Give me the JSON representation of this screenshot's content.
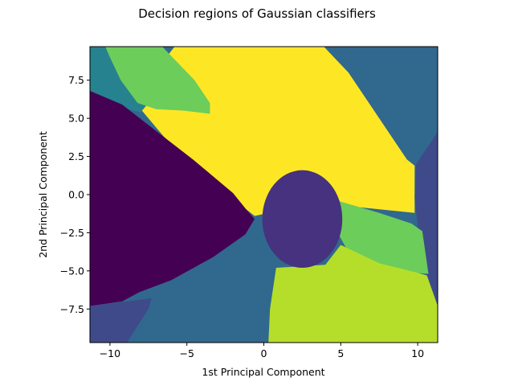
{
  "figure": {
    "title": "Decision regions of Gaussian classifiers"
  },
  "chart_data": {
    "type": "heatmap",
    "title": "Decision regions of Gaussian classifiers",
    "xlabel": "1st Principal Component",
    "ylabel": "2nd Principal Component",
    "xlim": [
      -11.3,
      11.3
    ],
    "ylim": [
      -9.7,
      9.7
    ],
    "x_ticks": [
      -10,
      -5,
      0,
      5,
      10
    ],
    "x_tick_labels": [
      "−10",
      "−5",
      "0",
      "5",
      "10"
    ],
    "y_ticks": [
      7.5,
      5.0,
      2.5,
      0.0,
      -2.5,
      -5.0,
      -7.5
    ],
    "y_tick_labels": [
      "7.5",
      "5.0",
      "2.5",
      "0.0",
      "−2.5",
      "−5.0",
      "−7.5"
    ],
    "grid": false,
    "legend": false,
    "colormap": "viridis",
    "class_colors": {
      "dark_purple": "#440154",
      "indigo": "#46327e",
      "slate_blue": "#3f4a8a",
      "steel_blue": "#31688e",
      "teal": "#26828e",
      "green": "#6ccd5a",
      "lime": "#b5de2b",
      "yellow": "#fde725"
    },
    "regions": [
      {
        "class": "steel_blue",
        "polygon": [
          [
            -11.3,
            -9.7
          ],
          [
            11.3,
            -9.7
          ],
          [
            11.3,
            9.7
          ],
          [
            -11.3,
            9.7
          ]
        ]
      },
      {
        "class": "yellow",
        "polygon": [
          [
            -5.8,
            9.7
          ],
          [
            3.9,
            9.7
          ],
          [
            5.5,
            8.0
          ],
          [
            9.3,
            2.3
          ],
          [
            9.8,
            1.9
          ],
          [
            9.8,
            -1.2
          ],
          [
            4.0,
            -0.6
          ],
          [
            0.8,
            -1.1
          ],
          [
            -0.6,
            -1.4
          ],
          [
            -3.0,
            0.5
          ],
          [
            -6.5,
            3.8
          ],
          [
            -8.0,
            5.6
          ],
          [
            -7.5,
            7.5
          ]
        ]
      },
      {
        "class": "teal",
        "polygon": [
          [
            -11.3,
            9.7
          ],
          [
            -9.5,
            9.7
          ],
          [
            -7.8,
            7.5
          ],
          [
            -7.5,
            6.0
          ],
          [
            -8.0,
            5.4
          ],
          [
            -8.8,
            5.6
          ],
          [
            -11.3,
            6.8
          ]
        ]
      },
      {
        "class": "green",
        "polygon": [
          [
            -10.3,
            9.7
          ],
          [
            -6.6,
            9.7
          ],
          [
            -4.5,
            7.5
          ],
          [
            -3.5,
            6.0
          ],
          [
            -3.5,
            5.3
          ],
          [
            -5.2,
            5.5
          ],
          [
            -7.0,
            5.6
          ],
          [
            -8.2,
            6.0
          ],
          [
            -9.3,
            7.5
          ],
          [
            -10.0,
            9.0
          ]
        ]
      },
      {
        "class": "dark_purple",
        "polygon": [
          [
            -11.3,
            6.8
          ],
          [
            -9.2,
            5.9
          ],
          [
            -7.8,
            4.8
          ],
          [
            -4.6,
            2.3
          ],
          [
            -2.0,
            0.1
          ],
          [
            -1.2,
            -0.9
          ],
          [
            -0.6,
            -1.6
          ],
          [
            -1.2,
            -2.6
          ],
          [
            -3.3,
            -4.1
          ],
          [
            -6.0,
            -5.6
          ],
          [
            -8.1,
            -6.4
          ],
          [
            -9.2,
            -7.0
          ],
          [
            -11.3,
            -7.3
          ]
        ]
      },
      {
        "class": "slate_blue",
        "polygon": [
          [
            -11.3,
            -7.3
          ],
          [
            -7.3,
            -6.8
          ],
          [
            -7.5,
            -7.5
          ],
          [
            -8.9,
            -9.7
          ],
          [
            -11.3,
            -9.7
          ]
        ]
      },
      {
        "class": "slate_blue",
        "polygon": [
          [
            9.9,
            2.0
          ],
          [
            11.3,
            4.1
          ],
          [
            11.3,
            -7.4
          ],
          [
            10.5,
            -5.2
          ],
          [
            10.1,
            -3.0
          ],
          [
            9.8,
            -0.2
          ]
        ]
      },
      {
        "class": "green",
        "polygon": [
          [
            4.8,
            -0.4
          ],
          [
            7.5,
            -1.2
          ],
          [
            9.6,
            -1.9
          ],
          [
            10.3,
            -2.4
          ],
          [
            10.6,
            -4.5
          ],
          [
            10.7,
            -5.2
          ],
          [
            9.5,
            -5.1
          ],
          [
            7.5,
            -4.6
          ],
          [
            5.4,
            -3.6
          ],
          [
            4.8,
            -2.5
          ]
        ]
      },
      {
        "class": "lime",
        "polygon": [
          [
            0.8,
            -4.8
          ],
          [
            4.0,
            -4.6
          ],
          [
            5.0,
            -3.3
          ],
          [
            7.5,
            -4.5
          ],
          [
            9.9,
            -5.1
          ],
          [
            10.6,
            -5.3
          ],
          [
            11.3,
            -7.3
          ],
          [
            11.3,
            -9.7
          ],
          [
            0.3,
            -9.7
          ],
          [
            0.4,
            -7.5
          ]
        ]
      },
      {
        "class": "indigo",
        "ellipse": {
          "cx": 2.5,
          "cy": -1.6,
          "rx": 2.6,
          "ry": 3.2
        }
      }
    ]
  }
}
